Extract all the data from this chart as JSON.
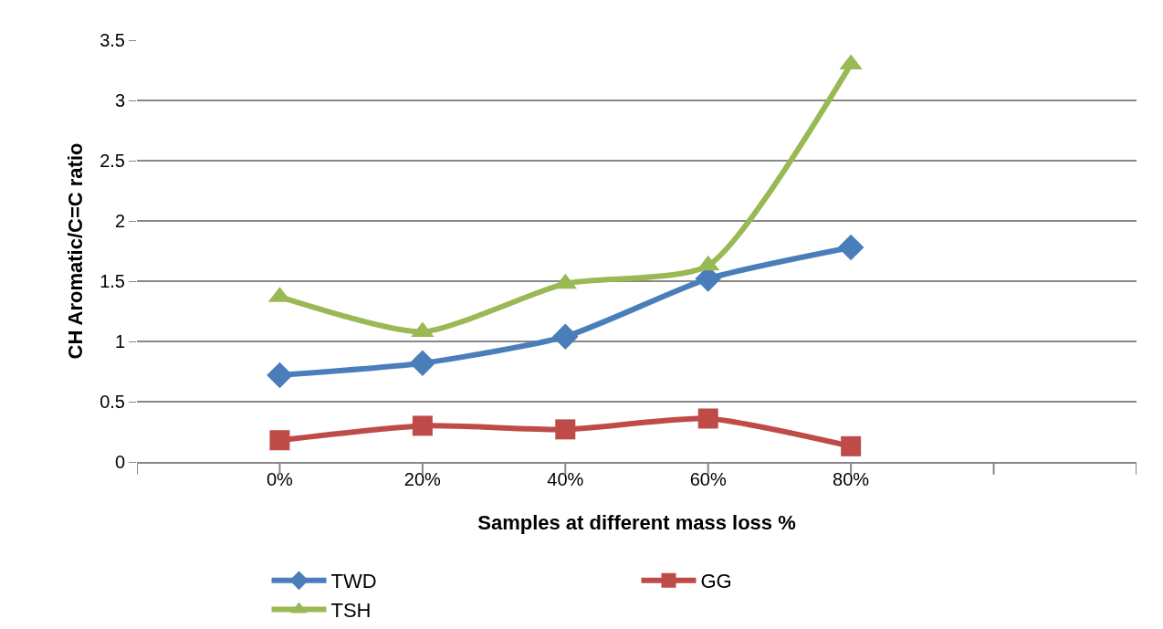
{
  "chart_data": {
    "type": "line",
    "xlabel": "Samples at different mass loss %",
    "ylabel": "CH Aromatic/C=C ratio",
    "categories": [
      null,
      "0%",
      "20%",
      "40%",
      "60%",
      "80%",
      null,
      null
    ],
    "series": [
      {
        "name": "TWD",
        "color": "#4a7ebb",
        "marker": "diamond",
        "values": [
          null,
          0.72,
          0.82,
          1.04,
          1.52,
          1.78,
          null,
          null
        ]
      },
      {
        "name": "GG",
        "color": "#be4b48",
        "marker": "square",
        "values": [
          null,
          0.18,
          0.3,
          0.27,
          0.36,
          0.13,
          null,
          null
        ]
      },
      {
        "name": "TSH",
        "color": "#98b954",
        "marker": "triangle",
        "values": [
          null,
          1.37,
          1.08,
          1.48,
          1.63,
          3.3,
          null,
          null
        ]
      }
    ],
    "ylim": [
      0,
      3.5
    ],
    "yticks": [
      0,
      0.5,
      1,
      1.5,
      2,
      2.5,
      3,
      3.5
    ],
    "grid": "y",
    "legend": "bottom",
    "line_style": "solid"
  }
}
